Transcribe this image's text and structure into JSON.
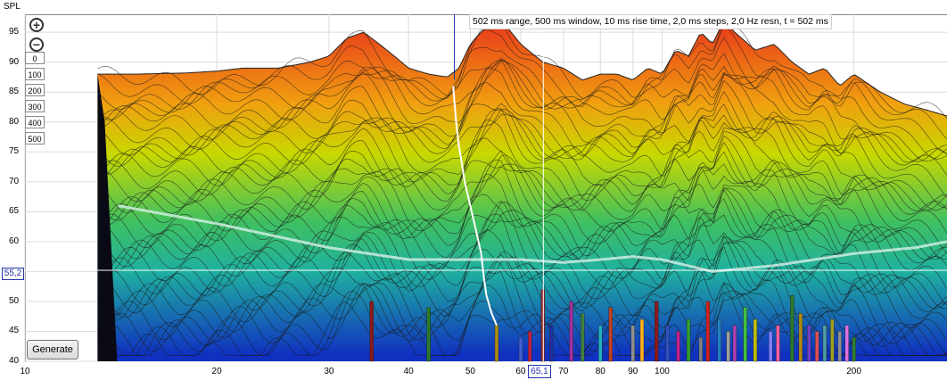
{
  "chart_data": {
    "type": "area",
    "title": "",
    "xlabel": "",
    "ylabel": "SPL",
    "x_scale": "log",
    "xlim": [
      10,
      280
    ],
    "ylim": [
      40,
      98
    ],
    "x_ticks": [
      "10",
      "20",
      "30",
      "40",
      "50",
      "60",
      "70",
      "80",
      "90",
      "100",
      "200"
    ],
    "y_ticks": [
      "40",
      "45",
      "50",
      "55",
      "60",
      "65",
      "70",
      "75",
      "80",
      "85",
      "90",
      "95"
    ],
    "cursor": {
      "x_readout": "65,1",
      "y_readout": "55,2"
    },
    "info": "502 ms range, 500 ms window, 10 ms rise time, 2,0 ms steps,  2,0 Hz resn, t = 502 ms",
    "colors": {
      "high": "#e8361c",
      "mid": "#c8d800",
      "low_mid": "#1fb0a0",
      "low": "#1030c0"
    },
    "time_slices_ms": [
      0,
      100,
      200,
      300,
      400,
      500
    ],
    "front_curve": {
      "x": [
        13,
        15,
        18,
        20,
        22,
        25,
        28,
        30,
        32,
        34,
        36,
        38,
        40,
        43,
        46,
        48,
        50,
        53,
        56,
        60,
        65,
        70,
        75,
        80,
        85,
        90,
        95,
        100,
        105,
        110,
        115,
        120,
        125,
        130,
        140,
        150,
        160,
        170,
        180,
        190,
        200,
        220,
        240,
        260,
        280
      ],
      "y": [
        88,
        88,
        88.2,
        88.5,
        89,
        89,
        90,
        91,
        94,
        95,
        93,
        91,
        89,
        88,
        87.5,
        89,
        93,
        96,
        97,
        93,
        90,
        89,
        87,
        88,
        88,
        87,
        89,
        88,
        92,
        91,
        95,
        93,
        97,
        95,
        92,
        93,
        90,
        88,
        89,
        86,
        88,
        85,
        83,
        82,
        81
      ]
    },
    "decay_curve": {
      "x": [
        14,
        20,
        30,
        40,
        50,
        60,
        70,
        80,
        90,
        100,
        120,
        150,
        200,
        250,
        280
      ],
      "y": [
        66,
        63,
        59,
        57,
        57,
        57,
        56.5,
        57,
        57.5,
        57,
        55,
        56,
        58,
        59,
        60
      ]
    },
    "decay_markers": {
      "x": [
        47,
        47.5,
        48,
        48.5,
        49,
        50,
        51,
        52,
        52.5,
        53,
        54,
        55
      ],
      "y": [
        86,
        80,
        76,
        73,
        70,
        66,
        62,
        58,
        54,
        51,
        48,
        46
      ]
    },
    "bars": {
      "x": [
        35,
        43,
        55,
        60,
        62,
        65,
        67,
        72,
        75,
        80,
        83,
        90,
        93,
        98,
        102,
        106,
        110,
        115,
        118,
        123,
        127,
        130,
        135,
        140,
        148,
        152,
        160,
        165,
        170,
        175,
        180,
        185,
        190,
        195,
        200
      ],
      "height": [
        50,
        49,
        46,
        44,
        45,
        52,
        46,
        50,
        48,
        46,
        49,
        46,
        47,
        50,
        46,
        45,
        47,
        44,
        50,
        47,
        45,
        46,
        49,
        47,
        45,
        46,
        51,
        48,
        46,
        45,
        46,
        47,
        45,
        46,
        44
      ],
      "colors": [
        "#8a1a1a",
        "#2a7a2a",
        "#b08a10",
        "#4060d0",
        "#c02040",
        "#9a2a2a",
        "#2030a0",
        "#a030a0",
        "#408040",
        "#20b0c0",
        "#c04020",
        "#909090",
        "#ffb020",
        "#8a1a1a",
        "#3050c0",
        "#c02090",
        "#30a030",
        "#808080",
        "#d02020",
        "#2080c0",
        "#a0a0a0",
        "#b040b0",
        "#40c040",
        "#c0c000",
        "#8080ff",
        "#ff60a0",
        "#2a7a2a",
        "#b08a10",
        "#7040c0",
        "#e05050",
        "#50a0a0",
        "#a0a020",
        "#909090",
        "#e070e0",
        "#308030"
      ]
    }
  },
  "ui": {
    "time_buttons": [
      "0",
      "100",
      "200",
      "300",
      "400",
      "500"
    ],
    "generate_label": "Generate"
  }
}
